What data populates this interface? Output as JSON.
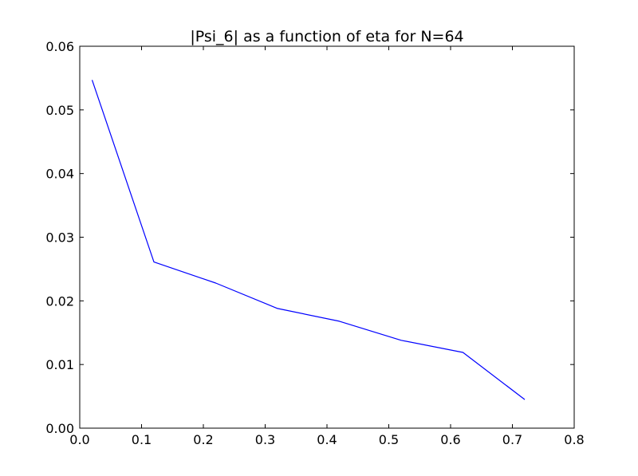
{
  "chart_data": {
    "type": "line",
    "title": "|Psi_6| as a function of eta for N=64",
    "xlabel": "",
    "ylabel": "",
    "xlim": [
      0.0,
      0.8
    ],
    "ylim": [
      0.0,
      0.06
    ],
    "xticks": [
      "0.0",
      "0.1",
      "0.2",
      "0.3",
      "0.4",
      "0.5",
      "0.6",
      "0.7",
      "0.8"
    ],
    "yticks": [
      "0.00",
      "0.01",
      "0.02",
      "0.03",
      "0.04",
      "0.05",
      "0.06"
    ],
    "grid": false,
    "series": [
      {
        "color": "#0000ff",
        "x": [
          0.02,
          0.12,
          0.22,
          0.32,
          0.42,
          0.52,
          0.62,
          0.72
        ],
        "y": [
          0.0547,
          0.0261,
          0.0228,
          0.0188,
          0.0168,
          0.0138,
          0.0119,
          0.0045
        ]
      }
    ]
  }
}
